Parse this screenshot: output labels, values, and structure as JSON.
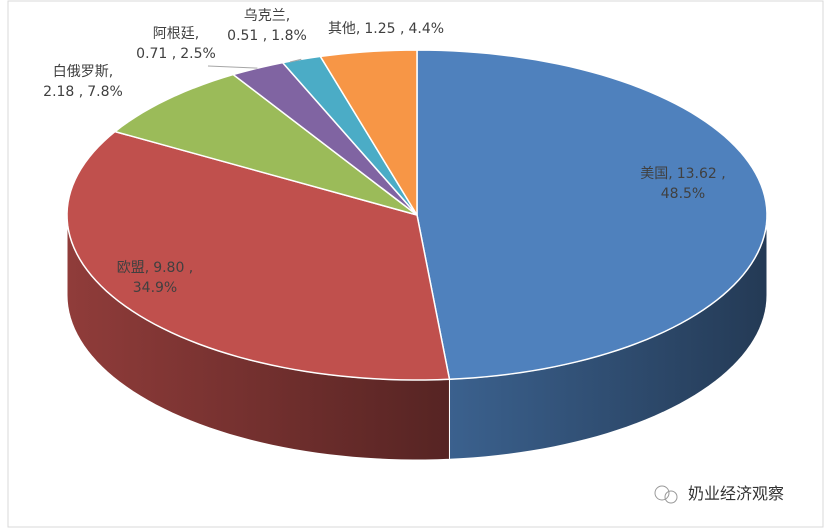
{
  "chart_data": {
    "type": "pie3d",
    "categories": [
      "美国,",
      "欧盟,",
      "白俄罗斯,",
      "阿根廷,",
      "乌克兰,",
      "其他,"
    ],
    "values": [
      13.62,
      9.8,
      2.18,
      0.71,
      0.51,
      1.25
    ],
    "value_labels": [
      "13.62 ,",
      "9.80 ,",
      "2.18 ,",
      "0.71 ,",
      "0.51 ,",
      "1.25 ,"
    ],
    "shares": [
      48.5,
      34.9,
      7.8,
      2.5,
      1.8,
      4.4
    ],
    "share_labels": [
      "48.5%",
      "34.9%",
      "7.8%",
      "2.5%",
      "1.8%",
      "4.4%"
    ],
    "colors": [
      "#4f81bd",
      "#c0504d",
      "#9bbb59",
      "#8064a2",
      "#4bacc6",
      "#f79646"
    ]
  },
  "watermark": "奶业经济观察"
}
